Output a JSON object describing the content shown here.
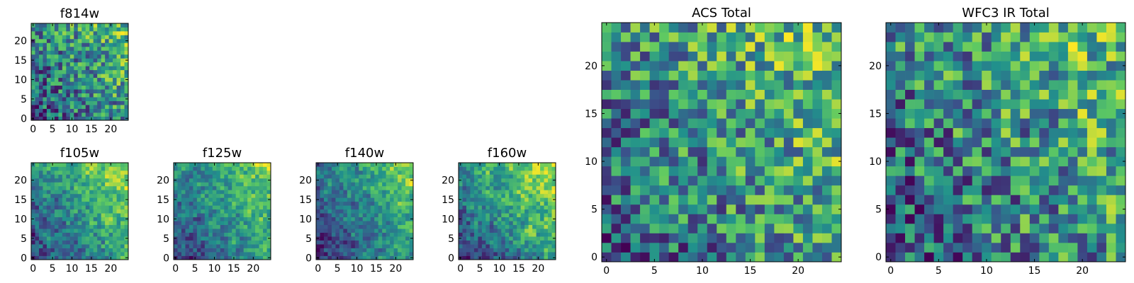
{
  "figure": {
    "colors": {
      "colormap": [
        "#440154",
        "#3b528b",
        "#21918c",
        "#5ec962",
        "#fde725"
      ],
      "frame": "#000000",
      "background": "#ffffff"
    }
  },
  "chart_data": [
    {
      "type": "heatmap",
      "title": "f814w",
      "grid_size": 25,
      "x_ticks": [
        0,
        5,
        10,
        15,
        20
      ],
      "y_ticks": [
        0,
        5,
        10,
        15,
        20
      ],
      "xlim": [
        -0.5,
        24.5
      ],
      "ylim": [
        -0.5,
        24.5
      ],
      "value_range": [
        0,
        1
      ],
      "seed": 11,
      "trend": 0.45,
      "noise": 0.35,
      "smooth": 0
    },
    {
      "type": "heatmap",
      "title": "f105w",
      "grid_size": 25,
      "x_ticks": [
        0,
        5,
        10,
        15,
        20
      ],
      "y_ticks": [
        0,
        5,
        10,
        15,
        20
      ],
      "xlim": [
        -0.5,
        24.5
      ],
      "ylim": [
        -0.5,
        24.5
      ],
      "value_range": [
        0,
        1
      ],
      "seed": 23,
      "trend": 0.6,
      "noise": 0.28,
      "smooth": 1
    },
    {
      "type": "heatmap",
      "title": "f125w",
      "grid_size": 25,
      "x_ticks": [
        0,
        5,
        10,
        15,
        20
      ],
      "y_ticks": [
        0,
        5,
        10,
        15,
        20
      ],
      "xlim": [
        -0.5,
        24.5
      ],
      "ylim": [
        -0.5,
        24.5
      ],
      "value_range": [
        0,
        1
      ],
      "seed": 37,
      "trend": 0.6,
      "noise": 0.28,
      "smooth": 1
    },
    {
      "type": "heatmap",
      "title": "f140w",
      "grid_size": 25,
      "x_ticks": [
        0,
        5,
        10,
        15,
        20
      ],
      "y_ticks": [
        0,
        5,
        10,
        15,
        20
      ],
      "xlim": [
        -0.5,
        24.5
      ],
      "ylim": [
        -0.5,
        24.5
      ],
      "value_range": [
        0,
        1
      ],
      "seed": 41,
      "trend": 0.6,
      "noise": 0.28,
      "smooth": 1
    },
    {
      "type": "heatmap",
      "title": "f160w",
      "grid_size": 25,
      "x_ticks": [
        0,
        5,
        10,
        15,
        20
      ],
      "y_ticks": [
        0,
        5,
        10,
        15,
        20
      ],
      "xlim": [
        -0.5,
        24.5
      ],
      "ylim": [
        -0.5,
        24.5
      ],
      "value_range": [
        0,
        1
      ],
      "seed": 53,
      "trend": 0.65,
      "noise": 0.25,
      "smooth": 1
    },
    {
      "type": "heatmap",
      "title": "ACS Total",
      "grid_size": 25,
      "x_ticks": [
        0,
        5,
        10,
        15,
        20
      ],
      "y_ticks": [
        0,
        5,
        10,
        15,
        20
      ],
      "xlim": [
        -0.5,
        24.5
      ],
      "ylim": [
        -0.5,
        24.5
      ],
      "value_range": [
        0,
        1
      ],
      "seed": 67,
      "trend": 0.4,
      "noise": 0.33,
      "smooth": 0
    },
    {
      "type": "heatmap",
      "title": "WFC3 IR Total",
      "grid_size": 25,
      "x_ticks": [
        0,
        5,
        10,
        15,
        20
      ],
      "y_ticks": [
        0,
        5,
        10,
        15,
        20
      ],
      "xlim": [
        -0.5,
        24.5
      ],
      "ylim": [
        -0.5,
        24.5
      ],
      "value_range": [
        0,
        1
      ],
      "seed": 79,
      "trend": 0.35,
      "noise": 0.33,
      "smooth": 0
    }
  ]
}
